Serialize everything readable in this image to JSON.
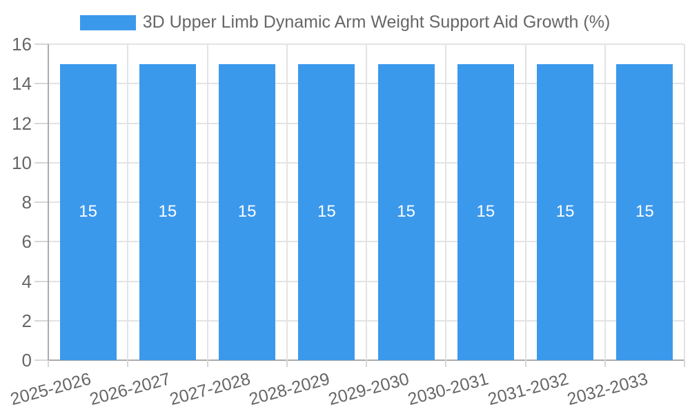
{
  "legend": {
    "label": "3D Upper Limb Dynamic Arm Weight Support Aid Growth (%)",
    "swatch_color": "#3b99ec"
  },
  "chart_data": {
    "type": "bar",
    "title": "3D Upper Limb Dynamic Arm Weight Support Aid Growth (%)",
    "categories": [
      "2025-2026",
      "2026-2027",
      "2027-2028",
      "2028-2029",
      "2029-2030",
      "2030-2031",
      "2031-2032",
      "2032-2033"
    ],
    "series": [
      {
        "name": "3D Upper Limb Dynamic Arm Weight Support Aid Growth (%)",
        "values": [
          15,
          15,
          15,
          15,
          15,
          15,
          15,
          15
        ]
      }
    ],
    "bar_labels": [
      "15",
      "15",
      "15",
      "15",
      "15",
      "15",
      "15",
      "15"
    ],
    "xlabel": "",
    "ylabel": "",
    "ylim": [
      0,
      16
    ],
    "yticks": [
      0,
      2,
      4,
      6,
      8,
      10,
      12,
      14,
      16
    ],
    "grid": true,
    "legend_position": "top",
    "x_label_rotation_deg": -15,
    "colors": {
      "bar": "#3b99ec",
      "bar_label": "#ffffff",
      "axis_text": "#666666",
      "grid_line": "#e3e3e3",
      "tick_line": "#d6d6d6",
      "axis_line": "#aaaaaa",
      "background": "#ffffff"
    }
  }
}
